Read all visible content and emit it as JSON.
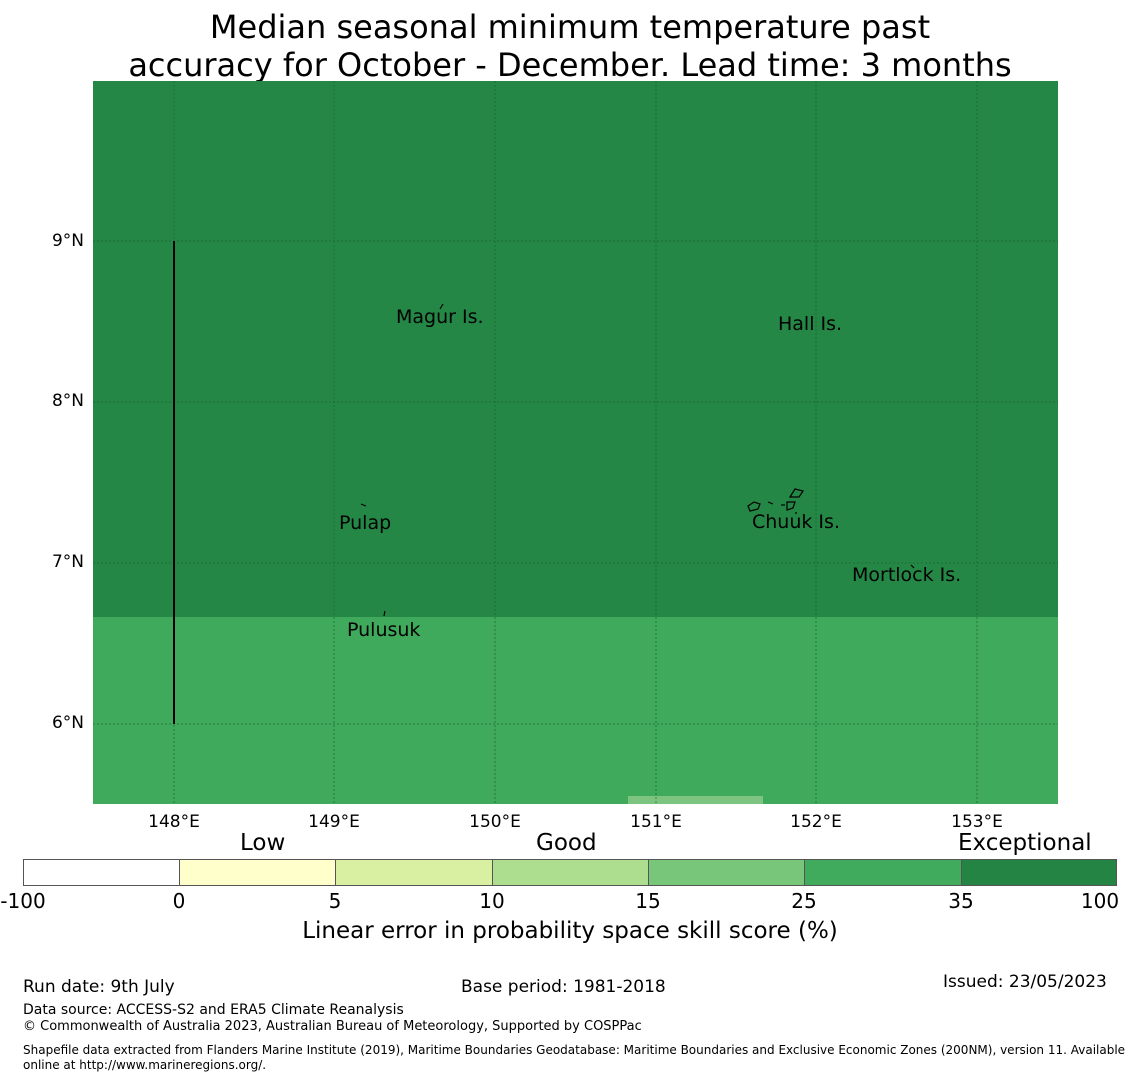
{
  "title_line1": "Median seasonal minimum temperature past",
  "title_line2": "accuracy for October - December. Lead time: 3 months",
  "map": {
    "y_ticks": [
      "9°N",
      "8°N",
      "7°N",
      "6°N"
    ],
    "x_ticks": [
      "148°E",
      "149°E",
      "150°E",
      "151°E",
      "152°E",
      "153°E"
    ],
    "places": [
      {
        "name": "Magur Is."
      },
      {
        "name": "Hall Is."
      },
      {
        "name": "Pulap"
      },
      {
        "name": "Chuuk Is."
      },
      {
        "name": "Mortlock Is."
      },
      {
        "name": "Pulusuk"
      }
    ],
    "colors": {
      "exceptional_band": "#248745",
      "good_band": "#3fa95c",
      "light_patch": "#7cc47f"
    }
  },
  "colorbar": {
    "categories": [
      "Low",
      "Good",
      "Exceptional"
    ],
    "ticks": [
      "-100",
      "0",
      "5",
      "10",
      "15",
      "25",
      "35",
      "100"
    ],
    "colors": [
      "#ffffff",
      "#ffffcc",
      "#d9f0a3",
      "#addd8e",
      "#78c679",
      "#41ab5d",
      "#238443"
    ],
    "title": "Linear error in probability space skill score (%)"
  },
  "footer": {
    "run_date": "Run date: 9th July",
    "base_period": "Base period: 1981-2018",
    "issued": "Issued: 23/05/2023",
    "data_source": "Data source: ACCESS-S2 and ERA5 Climate Reanalysis",
    "copyright": "© Commonwealth of Australia 2023, Australian Bureau of Meteorology, Supported by COSPPac",
    "shapefile_line1": "Shapefile data extracted from Flanders Marine Institute (2019), Maritime Boundaries Geodatabase: Maritime Boundaries and Exclusive Economic Zones (200NM), version 11. Available",
    "shapefile_line2": "online at http://www.marineregions.org/."
  }
}
